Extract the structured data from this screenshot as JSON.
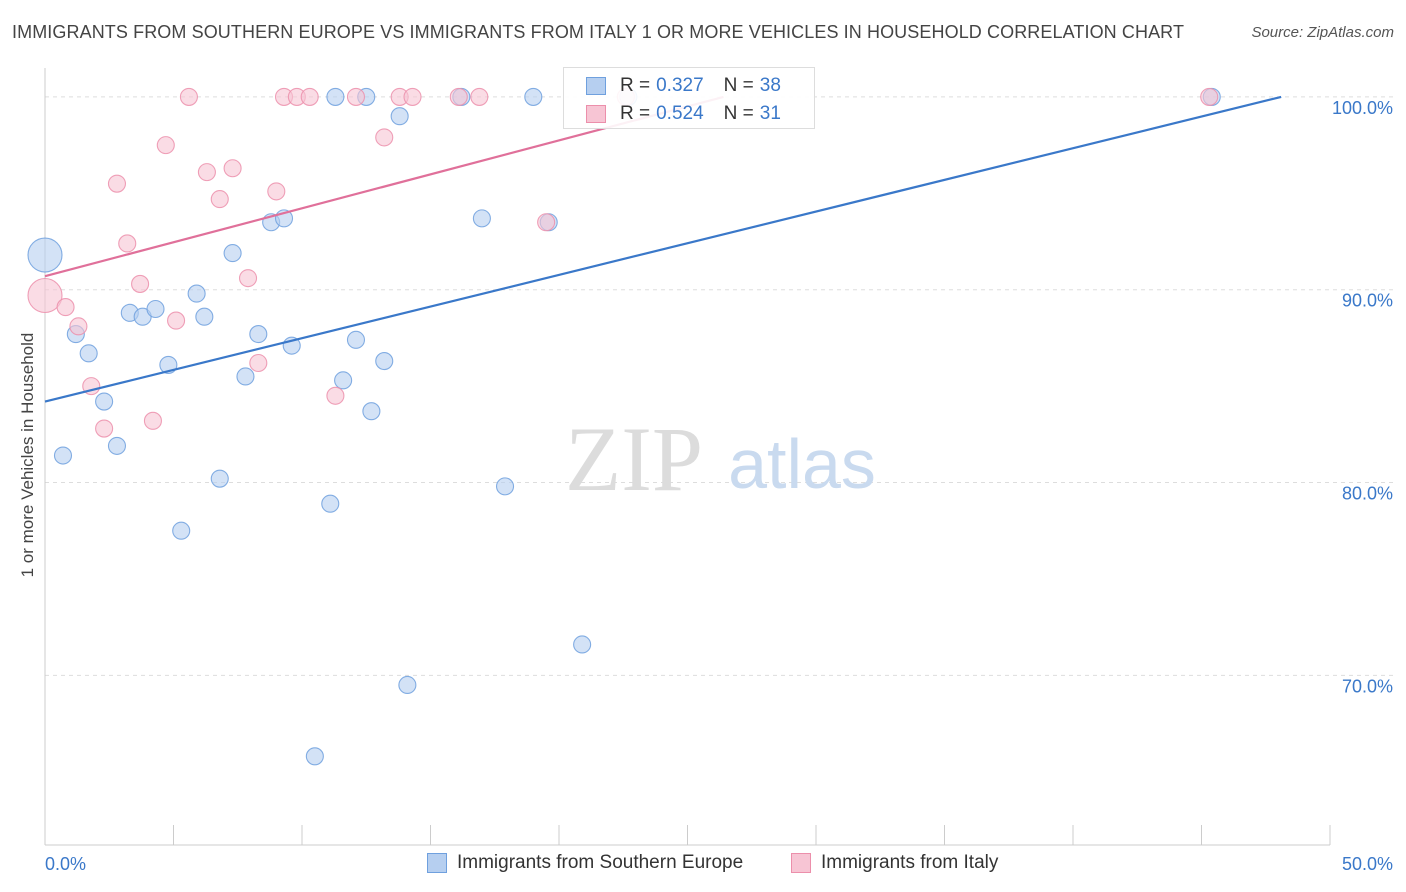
{
  "title": "IMMIGRANTS FROM SOUTHERN EUROPE VS IMMIGRANTS FROM ITALY 1 OR MORE VEHICLES IN HOUSEHOLD CORRELATION CHART",
  "source": "Source: ZipAtlas.com",
  "watermark": {
    "zip": "ZIP",
    "atlas": "atlas"
  },
  "legend": {
    "rows": [
      {
        "r_key": "R =",
        "r_value": "0.327",
        "n_key": "N =",
        "n_value": "38"
      },
      {
        "r_key": "R =",
        "r_value": "0.524",
        "n_key": "N =",
        "n_value": "31"
      }
    ]
  },
  "chart_data": {
    "type": "scatter",
    "xlabel": "",
    "ylabel": "1 or more Vehicles in Household",
    "xlim": [
      0,
      50
    ],
    "ylim": [
      61.2,
      101.5
    ],
    "x_tick_labels": [
      {
        "value": 0,
        "label": "0.0%"
      },
      {
        "value": 50,
        "label": "50.0%"
      }
    ],
    "y_tick_labels": [
      {
        "value": 100,
        "label": "100.0%"
      },
      {
        "value": 90,
        "label": "90.0%"
      },
      {
        "value": 80,
        "label": "80.0%"
      },
      {
        "value": 70,
        "label": "70.0%"
      }
    ],
    "y_gridlines": [
      100,
      90,
      80,
      70
    ],
    "x_ticks": [
      0,
      5,
      10,
      15,
      20,
      25,
      30,
      35,
      40,
      45,
      50
    ],
    "grid": true,
    "legend_position": "top-center",
    "series": [
      {
        "name": "Immigrants from Southern Europe",
        "color": "#6fa0de",
        "fill": "#b6cff0",
        "line_color": "#3a78c9",
        "trend": {
          "x": [
            0,
            48.1
          ],
          "y": [
            84.2,
            100.0
          ]
        },
        "points": [
          {
            "x": 0.0,
            "y": 91.8,
            "size": "large"
          },
          {
            "x": 0.7,
            "y": 81.4
          },
          {
            "x": 1.2,
            "y": 87.7
          },
          {
            "x": 1.7,
            "y": 86.7
          },
          {
            "x": 2.3,
            "y": 84.2
          },
          {
            "x": 2.8,
            "y": 81.9
          },
          {
            "x": 3.3,
            "y": 88.8
          },
          {
            "x": 3.8,
            "y": 88.6
          },
          {
            "x": 4.3,
            "y": 89.0
          },
          {
            "x": 4.8,
            "y": 86.1
          },
          {
            "x": 5.3,
            "y": 77.5
          },
          {
            "x": 5.9,
            "y": 89.8
          },
          {
            "x": 6.2,
            "y": 88.6
          },
          {
            "x": 6.8,
            "y": 80.2
          },
          {
            "x": 7.3,
            "y": 91.9
          },
          {
            "x": 7.8,
            "y": 85.5
          },
          {
            "x": 8.3,
            "y": 87.7
          },
          {
            "x": 8.8,
            "y": 93.5
          },
          {
            "x": 9.3,
            "y": 93.7
          },
          {
            "x": 9.6,
            "y": 87.1
          },
          {
            "x": 10.5,
            "y": 65.8
          },
          {
            "x": 11.1,
            "y": 78.9
          },
          {
            "x": 11.3,
            "y": 100.0
          },
          {
            "x": 11.6,
            "y": 85.3
          },
          {
            "x": 12.1,
            "y": 87.4
          },
          {
            "x": 12.5,
            "y": 100.0
          },
          {
            "x": 12.7,
            "y": 83.7
          },
          {
            "x": 13.2,
            "y": 86.3
          },
          {
            "x": 13.8,
            "y": 99.0
          },
          {
            "x": 14.1,
            "y": 69.5
          },
          {
            "x": 16.2,
            "y": 100.0
          },
          {
            "x": 17.0,
            "y": 93.7
          },
          {
            "x": 17.9,
            "y": 79.8
          },
          {
            "x": 19.0,
            "y": 100.0
          },
          {
            "x": 19.6,
            "y": 93.5
          },
          {
            "x": 20.9,
            "y": 71.6
          },
          {
            "x": 22.7,
            "y": 100.0
          },
          {
            "x": 45.4,
            "y": 100.0
          }
        ]
      },
      {
        "name": "Immigrants from Italy",
        "color": "#ec8fab",
        "fill": "#f7c5d4",
        "line_color": "#e0709a",
        "trend": {
          "x": [
            0,
            26.4
          ],
          "y": [
            90.7,
            100.0
          ]
        },
        "points": [
          {
            "x": 0.0,
            "y": 89.7,
            "size": "large"
          },
          {
            "x": 0.8,
            "y": 89.1
          },
          {
            "x": 1.3,
            "y": 88.1
          },
          {
            "x": 1.8,
            "y": 85.0
          },
          {
            "x": 2.3,
            "y": 82.8
          },
          {
            "x": 2.8,
            "y": 95.5
          },
          {
            "x": 3.2,
            "y": 92.4
          },
          {
            "x": 3.7,
            "y": 90.3
          },
          {
            "x": 4.2,
            "y": 83.2
          },
          {
            "x": 4.7,
            "y": 97.5
          },
          {
            "x": 5.1,
            "y": 88.4
          },
          {
            "x": 5.6,
            "y": 100.0
          },
          {
            "x": 6.3,
            "y": 96.1
          },
          {
            "x": 6.8,
            "y": 94.7
          },
          {
            "x": 7.3,
            "y": 96.3
          },
          {
            "x": 7.9,
            "y": 90.6
          },
          {
            "x": 8.3,
            "y": 86.2
          },
          {
            "x": 9.0,
            "y": 95.1
          },
          {
            "x": 9.3,
            "y": 100.0
          },
          {
            "x": 9.8,
            "y": 100.0
          },
          {
            "x": 10.3,
            "y": 100.0
          },
          {
            "x": 11.3,
            "y": 84.5
          },
          {
            "x": 12.1,
            "y": 100.0
          },
          {
            "x": 13.2,
            "y": 97.9
          },
          {
            "x": 13.8,
            "y": 100.0
          },
          {
            "x": 14.3,
            "y": 100.0
          },
          {
            "x": 16.1,
            "y": 100.0
          },
          {
            "x": 16.9,
            "y": 100.0
          },
          {
            "x": 19.5,
            "y": 93.5
          },
          {
            "x": 45.3,
            "y": 100.0
          },
          {
            "x": 22.6,
            "y": 100.0
          }
        ]
      }
    ]
  }
}
